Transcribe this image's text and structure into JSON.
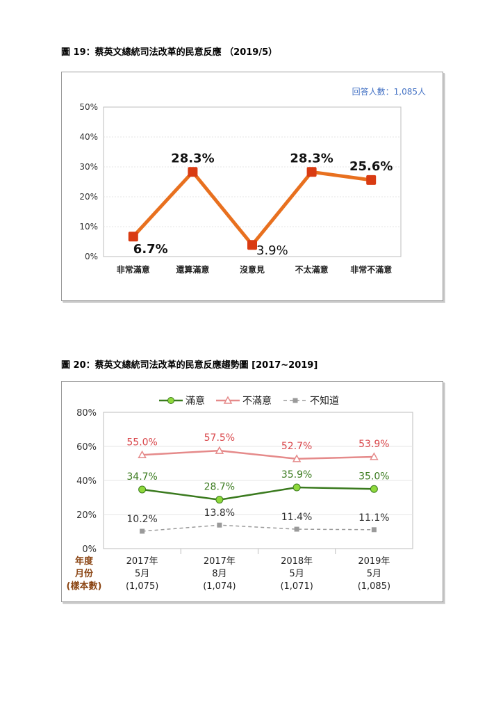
{
  "figure19": {
    "title": "圖 19：蔡英文總統司法改革的民意反應 （2019/5）",
    "note": "回答人數：1,085人",
    "chart_data": {
      "type": "line",
      "categories": [
        "非常滿意",
        "還算滿意",
        "沒意見",
        "不太滿意",
        "非常不滿意"
      ],
      "values": [
        6.7,
        28.3,
        3.9,
        28.3,
        25.6
      ],
      "data_labels": [
        "6.7%",
        "28.3%",
        "3.9%",
        "28.3%",
        "25.6%"
      ],
      "y_ticks": [
        "0%",
        "10%",
        "20%",
        "30%",
        "40%",
        "50%"
      ],
      "ylim": [
        0,
        50
      ],
      "grid": true,
      "colors": {
        "line": "#E8701F",
        "marker": "#D93B12"
      }
    }
  },
  "figure20": {
    "title": "圖 20：蔡英文總統司法改革的民意反應趨勢圖 [2017~2019]",
    "chart_data": {
      "type": "line",
      "categories": [
        [
          "2017年",
          "5月",
          "(1,075)"
        ],
        [
          "2017年",
          "8月",
          "(1,074)"
        ],
        [
          "2018年",
          "5月",
          "(1,071)"
        ],
        [
          "2019年",
          "5月",
          "(1,085)"
        ]
      ],
      "row_header": [
        "年度",
        "月份",
        "(樣本數)"
      ],
      "y_ticks": [
        "0%",
        "20%",
        "40%",
        "60%",
        "80%"
      ],
      "ylim": [
        0,
        80
      ],
      "legend_position": "top",
      "series": [
        {
          "name": "滿意",
          "values": [
            34.7,
            28.7,
            35.9,
            35.0
          ],
          "labels": [
            "34.7%",
            "28.7%",
            "35.9%",
            "35.0%"
          ],
          "color": "#3A7A1E",
          "marker_color": "#8FD93C",
          "marker": "circle"
        },
        {
          "name": "不滿意",
          "values": [
            55.0,
            57.5,
            52.7,
            53.9
          ],
          "labels": [
            "55.0%",
            "57.5%",
            "52.7%",
            "53.9%"
          ],
          "color": "#E58A8A",
          "label_color": "#D9474B",
          "marker": "triangle"
        },
        {
          "name": "不知道",
          "values": [
            10.2,
            13.8,
            11.4,
            11.1
          ],
          "labels": [
            "10.2%",
            "13.8%",
            "11.4%",
            "11.1%"
          ],
          "color": "#9A9A9A",
          "label_color": "#333333",
          "marker": "square",
          "dashed": true
        }
      ],
      "colors": {
        "row_header": "#8B4513"
      }
    }
  }
}
